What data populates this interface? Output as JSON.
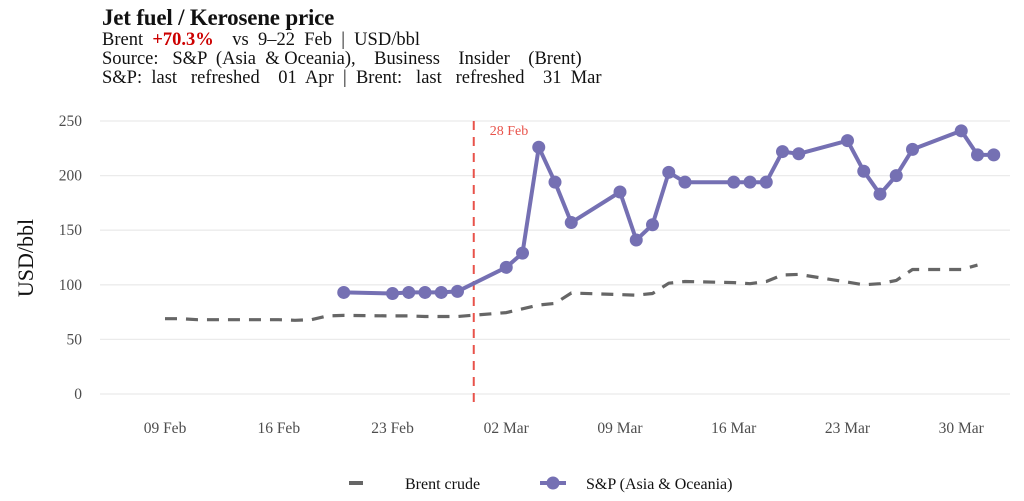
{
  "header": {
    "title": "Jet fuel / Kerosene price",
    "line1_prefix": "Brent  ",
    "line1_pct": "+70.3%",
    "line1_suffix": "    vs  9–22  Feb  |  USD/bbl",
    "line2": "Source:   S&P  (Asia  & Oceania),    Business    Insider    (Brent)",
    "line3": "S&P:  last   refreshed    01  Apr  |  Brent:   last   refreshed    31  Mar"
  },
  "colors": {
    "sp": "#7570b3",
    "brent": "#666666",
    "event_line": "#e8524a",
    "grid": "#ebebeb",
    "pct": "#cc0000"
  },
  "chart_data": {
    "type": "line",
    "title": "Jet fuel / Kerosene price",
    "xlabel": "",
    "ylabel": "USD/bbl",
    "ylim": [
      0,
      250
    ],
    "yticks": [
      0,
      50,
      100,
      150,
      200,
      250
    ],
    "xlim": [
      "2026-02-05",
      "2026-04-02"
    ],
    "xticks": [
      {
        "date": "2026-02-09",
        "label": "09 Feb"
      },
      {
        "date": "2026-02-16",
        "label": "16 Feb"
      },
      {
        "date": "2026-02-23",
        "label": "23 Feb"
      },
      {
        "date": "2026-03-02",
        "label": "02 Mar"
      },
      {
        "date": "2026-03-09",
        "label": "09 Mar"
      },
      {
        "date": "2026-03-16",
        "label": "16 Mar"
      },
      {
        "date": "2026-03-23",
        "label": "23 Mar"
      },
      {
        "date": "2026-03-30",
        "label": "30 Mar"
      }
    ],
    "grid": "horizontal",
    "legend": "bottom",
    "annotations": [
      {
        "type": "vline",
        "date": "2026-02-28",
        "label": "28 Feb",
        "style": "dashed"
      }
    ],
    "series": [
      {
        "name": "Brent crude",
        "style": "dashed",
        "markers": false,
        "points": [
          [
            "2026-02-09",
            69
          ],
          [
            "2026-02-10",
            69
          ],
          [
            "2026-02-11",
            68
          ],
          [
            "2026-02-12",
            68
          ],
          [
            "2026-02-13",
            68
          ],
          [
            "2026-02-16",
            68
          ],
          [
            "2026-02-17",
            67.5
          ],
          [
            "2026-02-18",
            68
          ],
          [
            "2026-02-19",
            71.5
          ],
          [
            "2026-02-20",
            72
          ],
          [
            "2026-02-23",
            71.5
          ],
          [
            "2026-02-24",
            71.5
          ],
          [
            "2026-02-25",
            71
          ],
          [
            "2026-02-26",
            71
          ],
          [
            "2026-02-27",
            71
          ],
          [
            "2026-03-02",
            74.5
          ],
          [
            "2026-03-03",
            78
          ],
          [
            "2026-03-04",
            81.5
          ],
          [
            "2026-03-05",
            83
          ],
          [
            "2026-03-06",
            92.5
          ],
          [
            "2026-03-09",
            91
          ],
          [
            "2026-03-10",
            90.5
          ],
          [
            "2026-03-11",
            92
          ],
          [
            "2026-03-12",
            101.5
          ],
          [
            "2026-03-13",
            103
          ],
          [
            "2026-03-16",
            102
          ],
          [
            "2026-03-17",
            101
          ],
          [
            "2026-03-18",
            103
          ],
          [
            "2026-03-19",
            109
          ],
          [
            "2026-03-20",
            109.5
          ],
          [
            "2026-03-23",
            102.5
          ],
          [
            "2026-03-24",
            100
          ],
          [
            "2026-03-25",
            101
          ],
          [
            "2026-03-26",
            104
          ],
          [
            "2026-03-27",
            114
          ],
          [
            "2026-03-30",
            114
          ],
          [
            "2026-03-31",
            118
          ]
        ]
      },
      {
        "name": "S&P (Asia & Oceania)",
        "style": "solid",
        "markers": true,
        "points": [
          [
            "2026-02-20",
            93
          ],
          [
            "2026-02-23",
            92
          ],
          [
            "2026-02-24",
            93
          ],
          [
            "2026-02-25",
            93
          ],
          [
            "2026-02-26",
            93
          ],
          [
            "2026-02-27",
            94
          ],
          [
            "2026-03-02",
            116
          ],
          [
            "2026-03-03",
            129
          ],
          [
            "2026-03-04",
            226
          ],
          [
            "2026-03-05",
            194
          ],
          [
            "2026-03-06",
            157
          ],
          [
            "2026-03-09",
            185
          ],
          [
            "2026-03-10",
            141
          ],
          [
            "2026-03-11",
            155
          ],
          [
            "2026-03-12",
            203
          ],
          [
            "2026-03-13",
            194
          ],
          [
            "2026-03-16",
            194
          ],
          [
            "2026-03-17",
            194
          ],
          [
            "2026-03-18",
            194
          ],
          [
            "2026-03-19",
            222
          ],
          [
            "2026-03-20",
            220
          ],
          [
            "2026-03-23",
            232
          ],
          [
            "2026-03-24",
            204
          ],
          [
            "2026-03-25",
            183
          ],
          [
            "2026-03-26",
            200
          ],
          [
            "2026-03-27",
            224
          ],
          [
            "2026-03-30",
            241
          ],
          [
            "2026-03-31",
            219
          ],
          [
            "2026-04-01",
            219
          ]
        ]
      }
    ]
  }
}
